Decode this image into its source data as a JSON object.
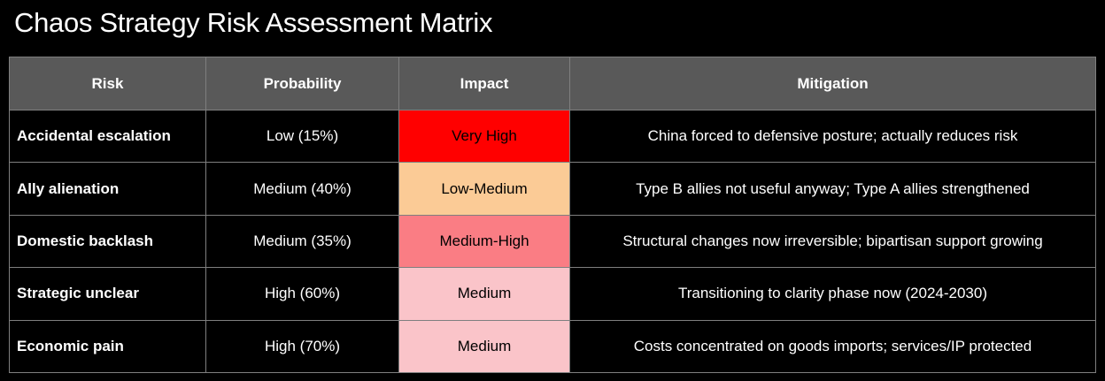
{
  "page": {
    "background": "#000000"
  },
  "title": "Chaos Strategy Risk Assessment Matrix",
  "table": {
    "header_bg": "#595959",
    "border_color": "#7f7f7f",
    "headers": [
      "Risk",
      "Probability",
      "Impact",
      "Mitigation"
    ],
    "rows": [
      {
        "risk": "Accidental escalation",
        "probability": "Low (15%)",
        "impact": "Very High",
        "impact_bg": "#ff0000",
        "mitigation": "China forced to defensive posture; actually reduces risk"
      },
      {
        "risk": "Ally alienation",
        "probability": "Medium (40%)",
        "impact": "Low-Medium",
        "impact_bg": "#fbcb96",
        "mitigation": "Type B allies not useful anyway; Type A allies strengthened"
      },
      {
        "risk": "Domestic backlash",
        "probability": "Medium (35%)",
        "impact": "Medium-High",
        "impact_bg": "#fa7d84",
        "mitigation": "Structural changes now irreversible; bipartisan support growing"
      },
      {
        "risk": "Strategic unclear",
        "probability": "High (60%)",
        "impact": "Medium",
        "impact_bg": "#fac4c9",
        "mitigation": "Transitioning to clarity phase now (2024-2030)"
      },
      {
        "risk": "Economic pain",
        "probability": "High (70%)",
        "impact": "Medium",
        "impact_bg": "#fac4c9",
        "mitigation": "Costs concentrated on goods imports; services/IP protected"
      }
    ]
  },
  "chart_data": {
    "type": "table",
    "title": "Chaos Strategy Risk Assessment Matrix",
    "columns": [
      "Risk",
      "Probability",
      "Impact",
      "Mitigation"
    ],
    "rows": [
      [
        "Accidental escalation",
        "Low (15%)",
        "Very High",
        "China forced to defensive posture; actually reduces risk"
      ],
      [
        "Ally alienation",
        "Medium (40%)",
        "Low-Medium",
        "Type B allies not useful anyway; Type A allies strengthened"
      ],
      [
        "Domestic backlash",
        "Medium (35%)",
        "Medium-High",
        "Structural changes now irreversible; bipartisan support growing"
      ],
      [
        "Strategic unclear",
        "High (60%)",
        "Medium",
        "Transitioning to clarity phase now (2024-2030)"
      ],
      [
        "Economic pain",
        "High (70%)",
        "Medium",
        "Costs concentrated on goods imports; services/IP protected"
      ]
    ],
    "probability_values_pct": [
      15,
      40,
      35,
      60,
      70
    ],
    "impact_levels": [
      "Very High",
      "Low-Medium",
      "Medium-High",
      "Medium",
      "Medium"
    ],
    "impact_cell_colors": [
      "#ff0000",
      "#fbcb96",
      "#fa7d84",
      "#fac4c9",
      "#fac4c9"
    ],
    "layout": {
      "background": "#000000",
      "header_background": "#595959",
      "grid": true
    }
  }
}
